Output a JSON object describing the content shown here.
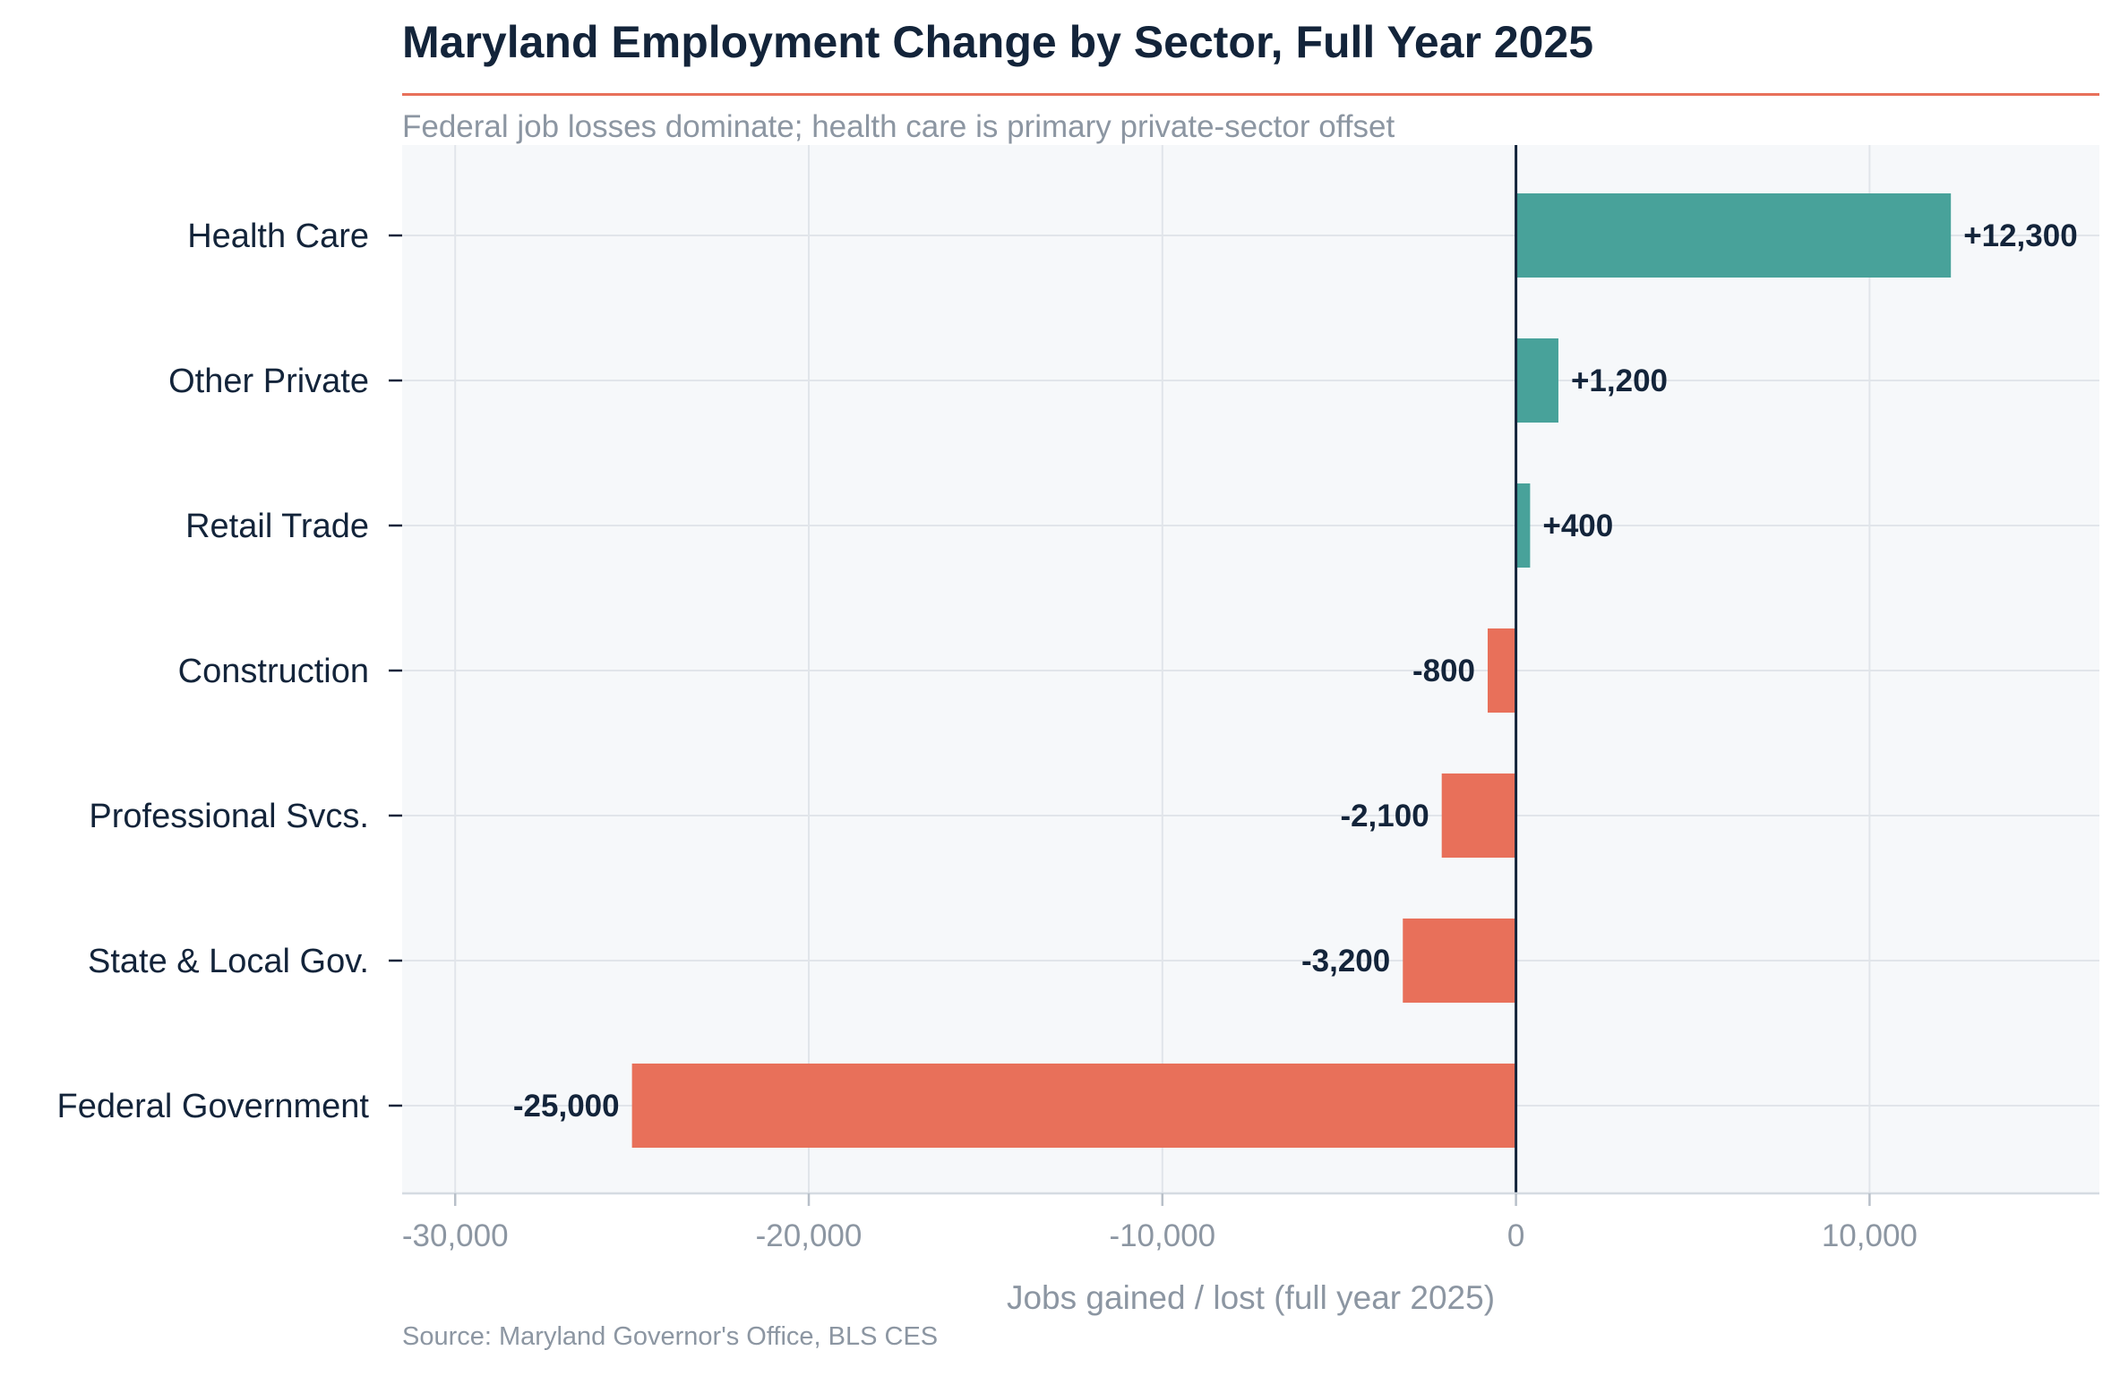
{
  "colors": {
    "positive": "#48a29a",
    "negative": "#e8705a",
    "title": "#13243a",
    "muted": "#8c96a2",
    "plot_background": "#f6f8fa",
    "grid": "#e1e5ea",
    "zero_line": "#13243a"
  },
  "chart_data": {
    "type": "bar",
    "orientation": "horizontal",
    "title": "Maryland Employment Change by Sector, Full Year 2025",
    "subtitle": "Federal job losses dominate; health care is primary private-sector offset",
    "xlabel": "Jobs gained / lost  (full year 2025)",
    "source": "Source: Maryland Governor's Office, BLS CES",
    "categories": [
      "Health Care",
      "Other Private",
      "Retail Trade",
      "Construction",
      "Professional Svcs.",
      "State & Local Gov.",
      "Federal Government"
    ],
    "values": [
      12300,
      1200,
      400,
      -800,
      -2100,
      -3200,
      -25000
    ],
    "data_labels": [
      "+12,300",
      "+1,200",
      "+400",
      "-800",
      "-2,100",
      "-3,200",
      "-25,000"
    ],
    "xlim": [
      -31500,
      16500
    ],
    "x_ticks": [
      -30000,
      -20000,
      -10000,
      0,
      10000
    ],
    "x_tick_labels": [
      "-30,000",
      "-20,000",
      "-10,000",
      "0",
      "10,000"
    ],
    "grid": true,
    "legend": "none"
  }
}
